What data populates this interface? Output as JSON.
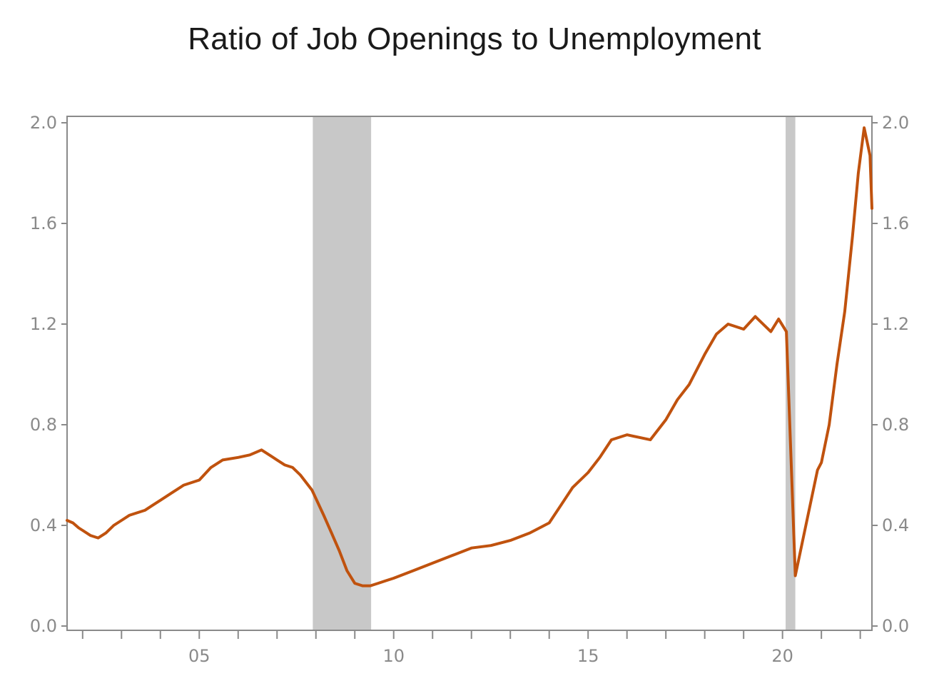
{
  "chart_data": {
    "type": "line",
    "title": "Ratio of Job Openings to Unemployment",
    "xlabel": "",
    "ylabel": "",
    "x_range": [
      2001.6,
      2022.3
    ],
    "ylim": [
      0.0,
      2.0
    ],
    "y_ticks": [
      "0.0",
      "0.4",
      "0.8",
      "1.2",
      "1.6",
      "2.0"
    ],
    "y_tick_values": [
      0.0,
      0.4,
      0.8,
      1.2,
      1.6,
      2.0
    ],
    "x_tick_labels": [
      {
        "year": 2005,
        "label": "05"
      },
      {
        "year": 2010,
        "label": "10"
      },
      {
        "year": 2015,
        "label": "15"
      },
      {
        "year": 2020,
        "label": "20"
      }
    ],
    "x_minor_ticks": [
      2002,
      2003,
      2004,
      2005,
      2006,
      2007,
      2008,
      2009,
      2010,
      2011,
      2012,
      2013,
      2014,
      2015,
      2016,
      2017,
      2018,
      2019,
      2020,
      2021,
      2022
    ],
    "recessions": [
      [
        2007.92,
        2009.42
      ],
      [
        2020.08,
        2020.33
      ]
    ],
    "grid": false,
    "colors": {
      "line": "#c0520e",
      "recession": "#c8c8c8",
      "axis": "#8a8a8a"
    },
    "series": [
      {
        "name": "",
        "x": [
          2001.6,
          2001.75,
          2001.9,
          2002.0,
          2002.2,
          2002.4,
          2002.6,
          2002.8,
          2003.0,
          2003.2,
          2003.4,
          2003.6,
          2003.8,
          2004.0,
          2004.3,
          2004.6,
          2005.0,
          2005.3,
          2005.6,
          2006.0,
          2006.3,
          2006.6,
          2006.8,
          2007.0,
          2007.2,
          2007.4,
          2007.6,
          2007.9,
          2008.2,
          2008.4,
          2008.6,
          2008.8,
          2009.0,
          2009.2,
          2009.4,
          2009.6,
          2009.8,
          2010.0,
          2010.5,
          2011.0,
          2011.5,
          2012.0,
          2012.5,
          2013.0,
          2013.5,
          2014.0,
          2014.3,
          2014.6,
          2015.0,
          2015.3,
          2015.6,
          2016.0,
          2016.3,
          2016.6,
          2017.0,
          2017.3,
          2017.6,
          2018.0,
          2018.3,
          2018.6,
          2019.0,
          2019.3,
          2019.5,
          2019.7,
          2019.9,
          2020.1,
          2020.33,
          2020.6,
          2020.9,
          2021.0,
          2021.2,
          2021.4,
          2021.6,
          2021.8,
          2021.95,
          2022.1,
          2022.25,
          2022.3
        ],
        "values": [
          0.42,
          0.41,
          0.39,
          0.38,
          0.36,
          0.35,
          0.37,
          0.4,
          0.42,
          0.44,
          0.45,
          0.46,
          0.48,
          0.5,
          0.53,
          0.56,
          0.58,
          0.63,
          0.66,
          0.67,
          0.68,
          0.7,
          0.68,
          0.66,
          0.64,
          0.63,
          0.6,
          0.54,
          0.44,
          0.37,
          0.3,
          0.22,
          0.17,
          0.16,
          0.16,
          0.17,
          0.18,
          0.19,
          0.22,
          0.25,
          0.28,
          0.31,
          0.32,
          0.34,
          0.37,
          0.41,
          0.48,
          0.55,
          0.61,
          0.67,
          0.74,
          0.76,
          0.75,
          0.74,
          0.82,
          0.9,
          0.96,
          1.08,
          1.16,
          1.2,
          1.18,
          1.23,
          1.2,
          1.17,
          1.22,
          1.17,
          0.2,
          0.4,
          0.62,
          0.65,
          0.8,
          1.04,
          1.25,
          1.55,
          1.8,
          1.98,
          1.87,
          1.66
        ]
      }
    ]
  }
}
